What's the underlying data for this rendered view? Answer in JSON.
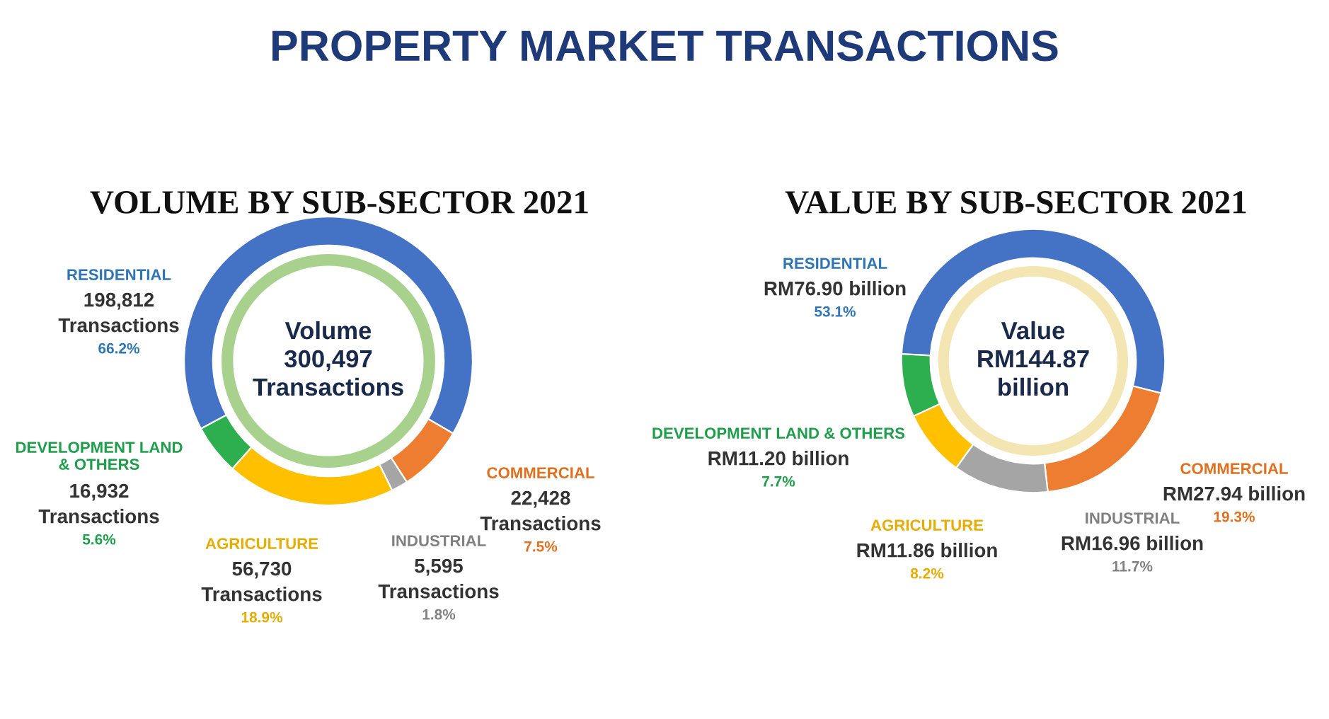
{
  "chart_data": [
    {
      "type": "donut",
      "title": "PROPERTY MARKET TRANSACTIONS",
      "subtitle": "VOLUME BY SUB-SECTOR 2021",
      "categories": [
        "RESIDENTIAL",
        "COMMERCIAL",
        "INDUSTRIAL",
        "AGRICULTURE",
        "DEVELOPMENT LAND\n& OTHERS"
      ],
      "values": [
        198812,
        22428,
        5595,
        56730,
        16932
      ],
      "colors": [
        "#4472c4",
        "#ed7d31",
        "#a5a5a5",
        "#ffc000",
        "#2eaf4f"
      ],
      "value_labels": [
        "198,812\nTransactions\n66.2%",
        "22,428\nTransactions\n7.5%",
        "5,595\nTransactions\n1.8%",
        "56,730\nTransactions\n18.9%",
        "16,932\nTransactions\n5.6%"
      ],
      "annotations": [
        "Volume\n300,497\nTransactions"
      ],
      "legend": false
    },
    {
      "type": "donut",
      "subtitle": "VALUE BY SUB-SECTOR 2021",
      "categories": [
        "RESIDENTIAL",
        "COMMERCIAL",
        "INDUSTRIAL",
        "AGRICULTURE",
        "DEVELOPMENT LAND & OTHERS"
      ],
      "values": [
        53.1,
        19.3,
        11.7,
        8.2,
        7.7
      ],
      "colors": [
        "#4472c4",
        "#ed7d31",
        "#a5a5a5",
        "#ffc000",
        "#2eaf4f"
      ],
      "value_labels": [
        "RM76.90 billion\n53.1%",
        "RM27.94 billion\n19.3%",
        "RM16.96 billion\n11.7%",
        "RM11.86 billion\n8.2%",
        "RM11.20 billion\n7.7%"
      ],
      "annotations": [
        "Value\nRM144.87\nbillion"
      ],
      "legend": false
    }
  ]
}
